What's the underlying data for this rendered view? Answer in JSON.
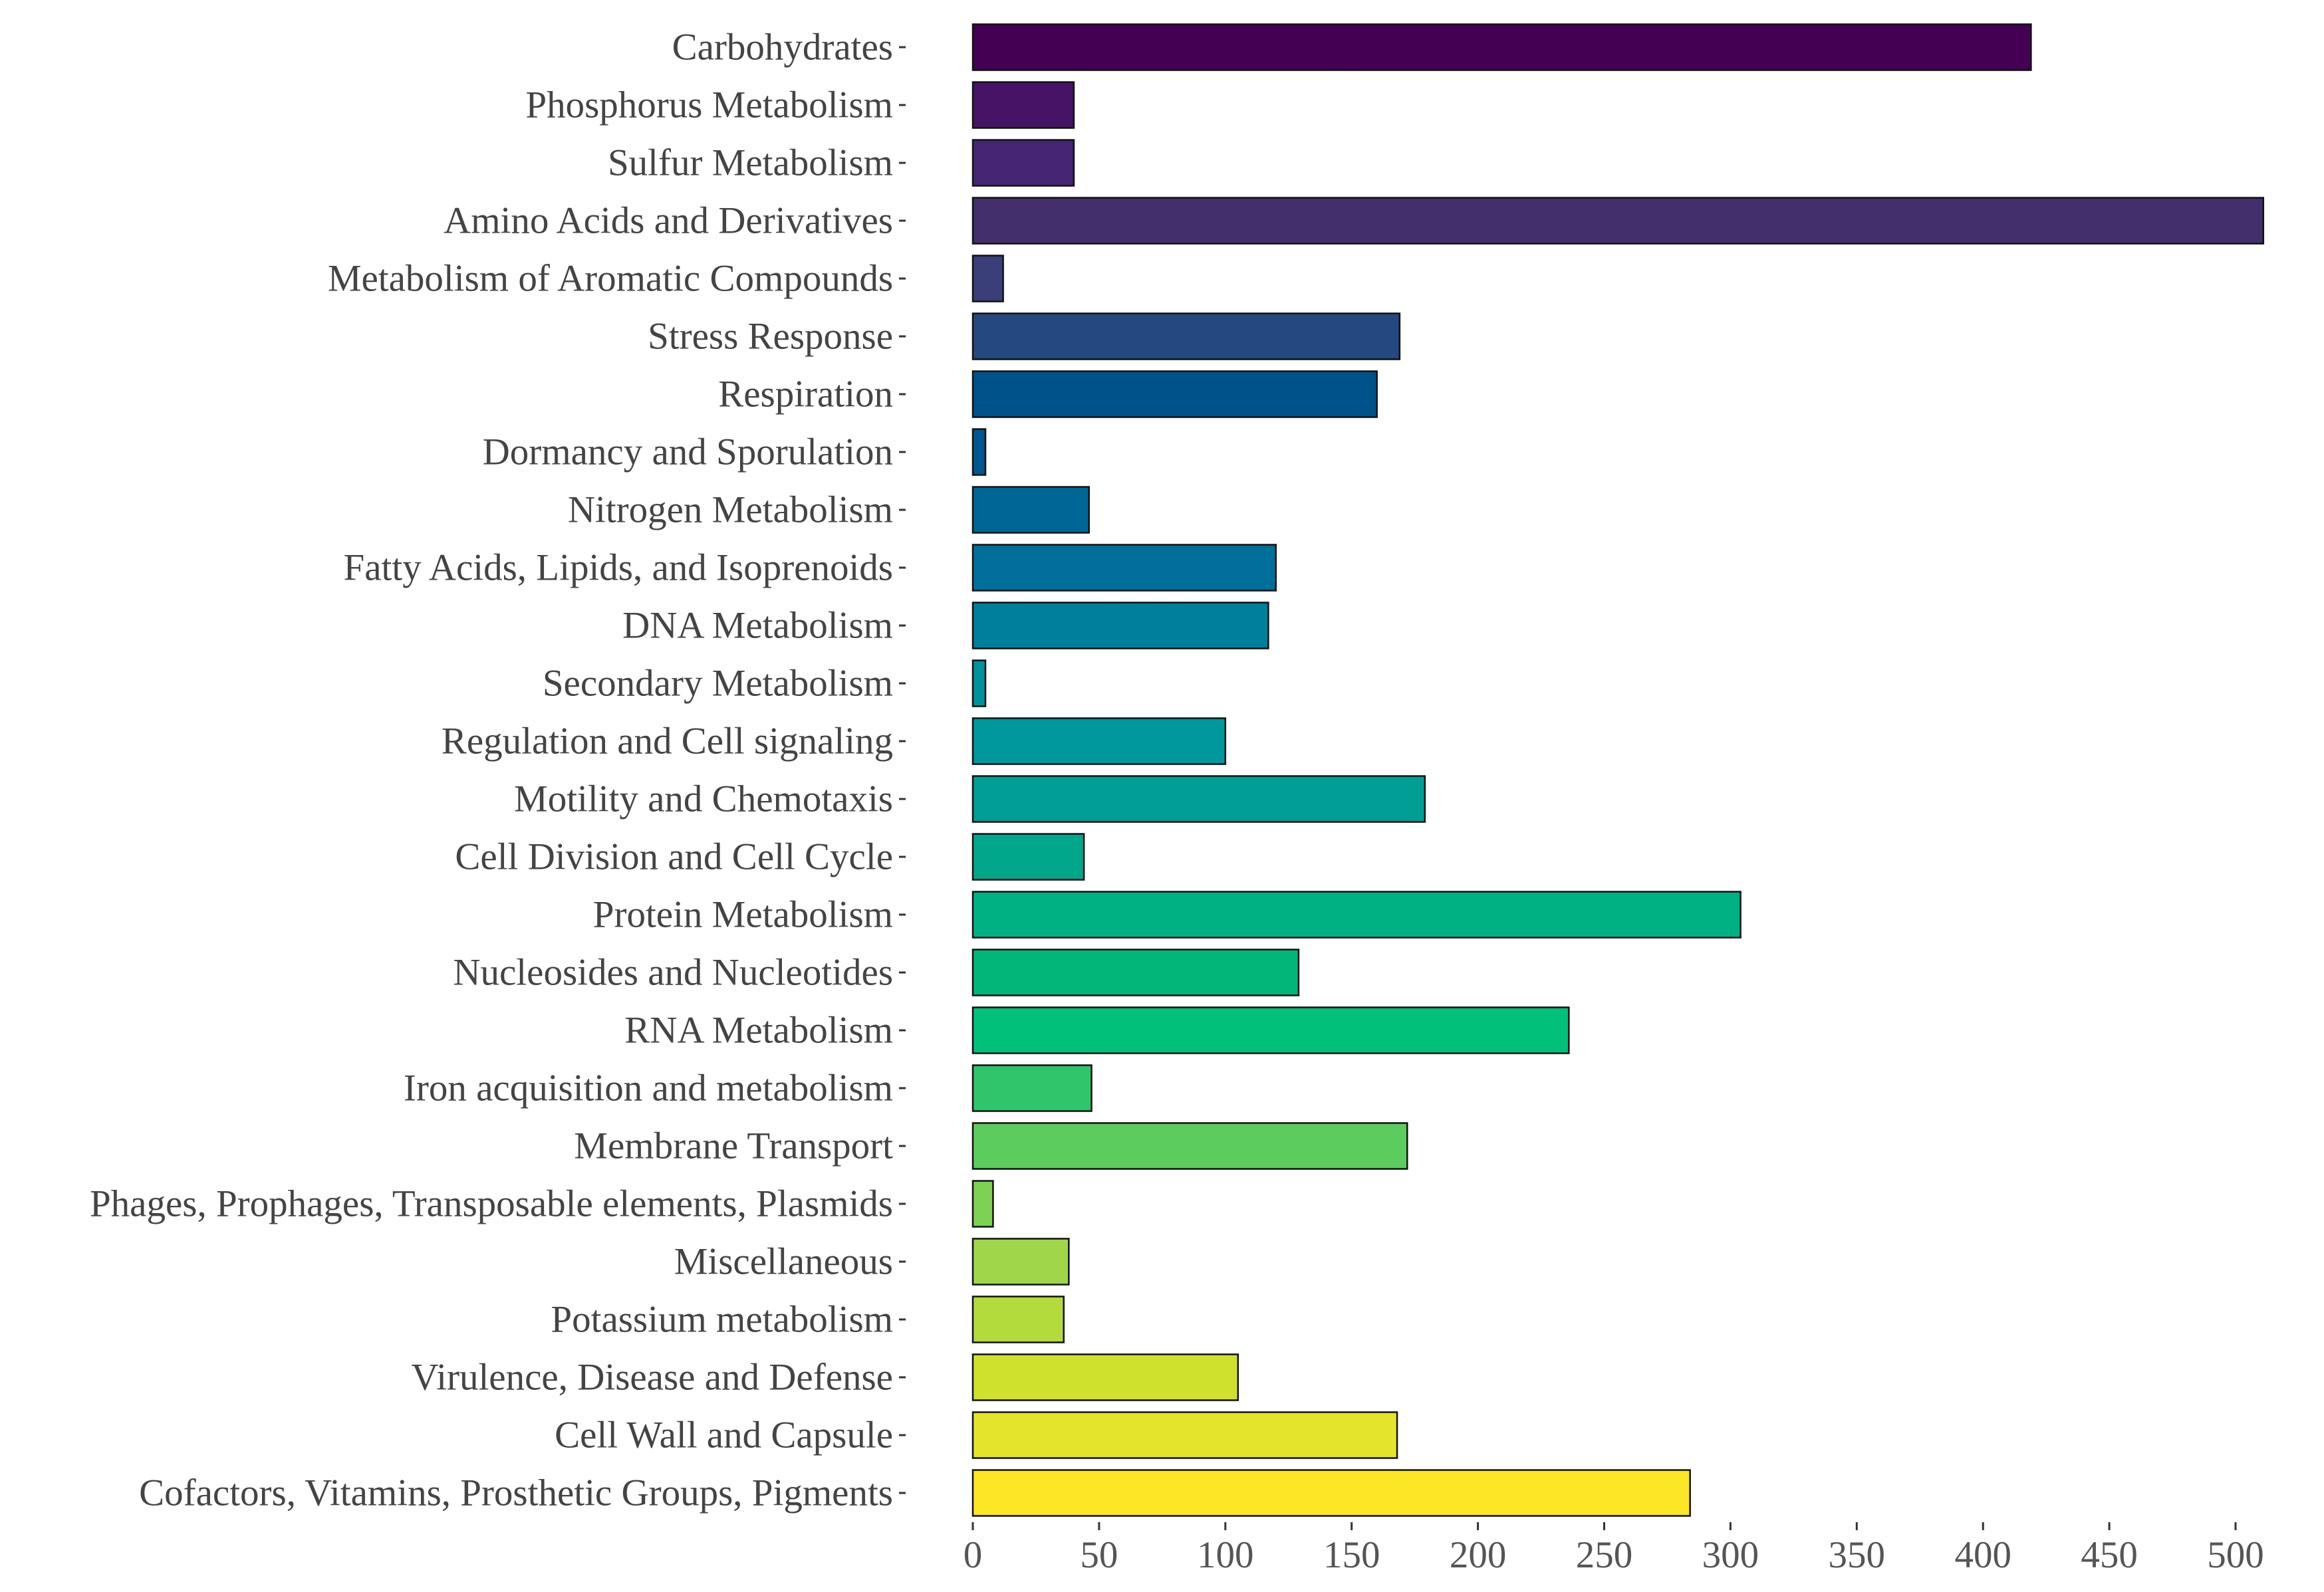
{
  "chart_data": {
    "type": "bar",
    "orientation": "horizontal",
    "title": "",
    "xlabel": "",
    "ylabel": "",
    "xlim": [
      0,
      510
    ],
    "x_ticks": [
      0,
      50,
      100,
      150,
      200,
      250,
      300,
      350,
      400,
      450,
      500
    ],
    "grid": false,
    "categories": [
      "Carbohydrates",
      "Phosphorus Metabolism",
      "Sulfur Metabolism",
      "Amino Acids and Derivatives",
      "Metabolism of Aromatic Compounds",
      "Stress Response",
      "Respiration",
      "Dormancy and Sporulation",
      "Nitrogen Metabolism",
      "Fatty Acids, Lipids, and Isoprenoids",
      "DNA Metabolism",
      "Secondary Metabolism",
      "Regulation and Cell signaling",
      "Motility and Chemotaxis",
      "Cell Division and Cell Cycle",
      "Protein Metabolism",
      "Nucleosides and Nucleotides",
      "RNA Metabolism",
      "Iron acquisition and metabolism",
      "Membrane Transport",
      "Phages, Prophages, Transposable elements, Plasmids",
      "Miscellaneous",
      "Potassium metabolism",
      "Virulence, Disease and Defense",
      "Cell Wall and Capsule",
      "Cofactors, Vitamins, Prosthetic Groups, Pigments"
    ],
    "values": [
      419,
      40,
      40,
      511,
      12,
      169,
      160,
      5,
      46,
      120,
      117,
      5,
      100,
      179,
      44,
      304,
      129,
      236,
      47,
      172,
      8,
      38,
      36,
      105,
      168,
      284
    ],
    "colors": [
      "#440154",
      "#461366",
      "#472575",
      "#432F6B",
      "#3A3F7A",
      "#24487F",
      "#00538A",
      "#00578F",
      "#006696",
      "#00709A",
      "#007F9C",
      "#00919E",
      "#00979D",
      "#009E94",
      "#00A78B",
      "#00B184",
      "#00B77A",
      "#00C07A",
      "#2FC56A",
      "#5BCC5D",
      "#7DD154",
      "#A0D64A",
      "#B2DB3B",
      "#CFE12D",
      "#E4E42C",
      "#FDE625"
    ]
  }
}
